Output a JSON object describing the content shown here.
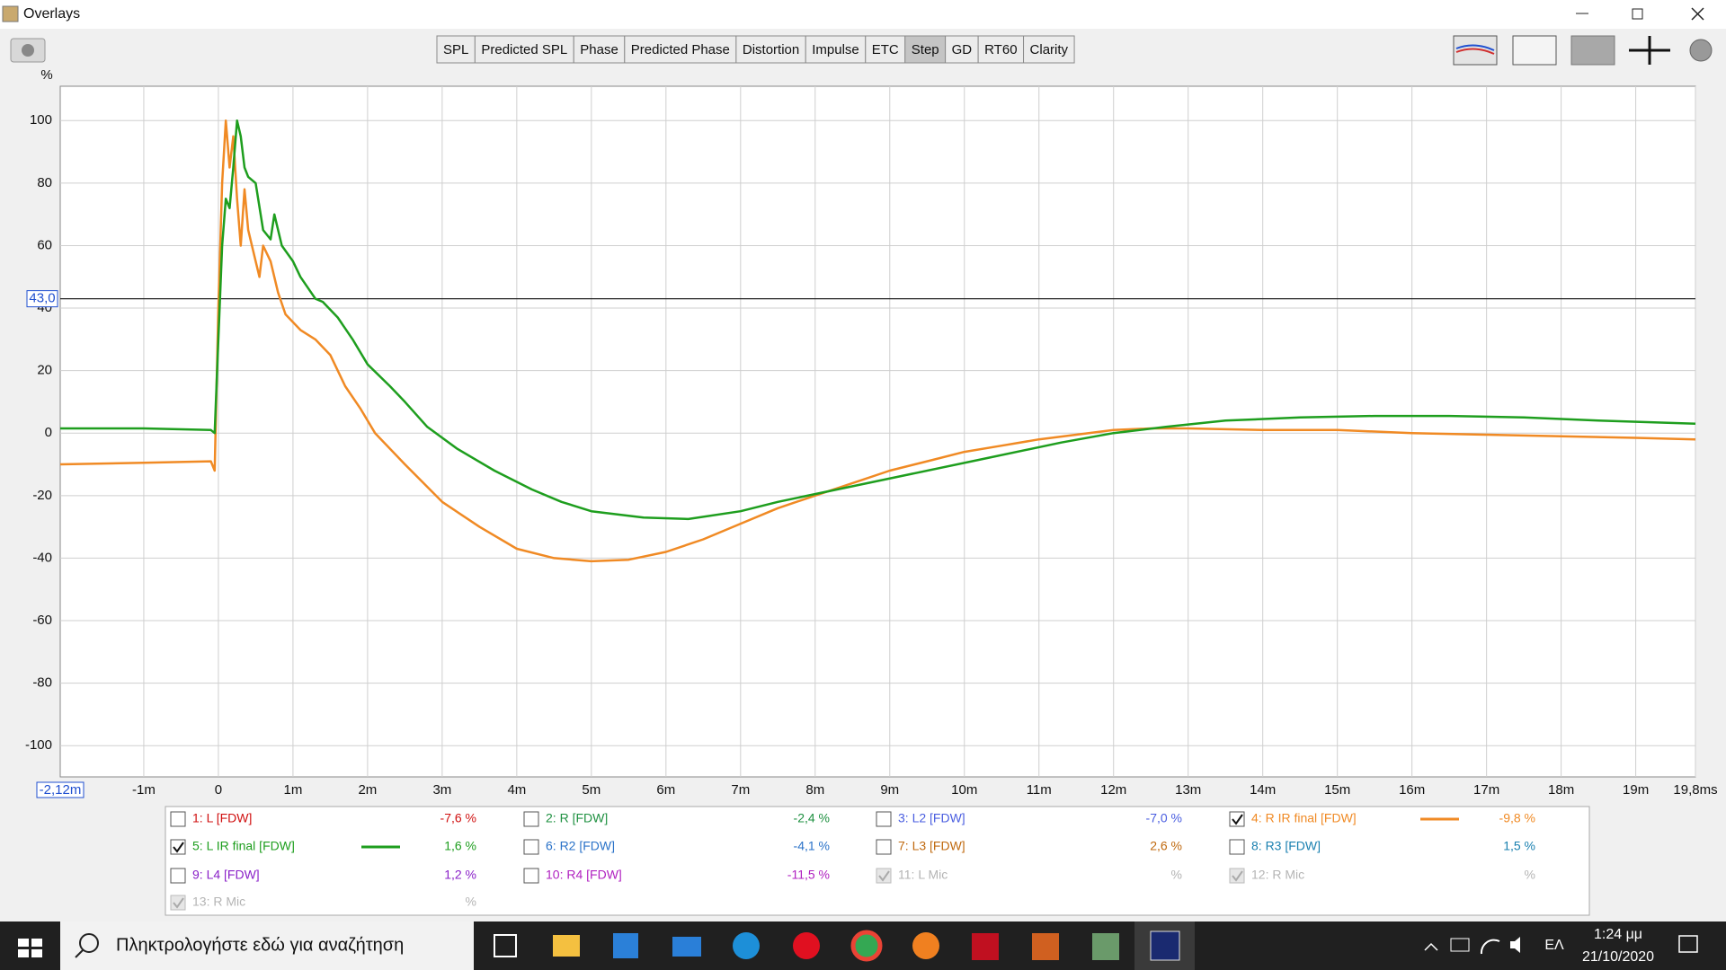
{
  "window": {
    "title": "Overlays"
  },
  "toolbar": {
    "tabs": [
      "SPL",
      "Predicted SPL",
      "Phase",
      "Predicted Phase",
      "Distortion",
      "Impulse",
      "ETC",
      "Step",
      "GD",
      "RT60",
      "Clarity"
    ],
    "selected": 7
  },
  "chart_data": {
    "type": "line",
    "y_label": "%",
    "xlim": [
      -2.12,
      19.8
    ],
    "x_start_label": {
      "value": -2.12,
      "label": "-2,12m"
    },
    "xticks": [
      {
        "value": -1,
        "label": "-1m"
      },
      0,
      {
        "value": 1,
        "label": "1m"
      },
      {
        "value": 2,
        "label": "2m"
      },
      {
        "value": 3,
        "label": "3m"
      },
      {
        "value": 4,
        "label": "4m"
      },
      {
        "value": 5,
        "label": "5m"
      },
      {
        "value": 6,
        "label": "6m"
      },
      {
        "value": 7,
        "label": "7m"
      },
      {
        "value": 8,
        "label": "8m"
      },
      {
        "value": 9,
        "label": "9m"
      },
      {
        "value": 10,
        "label": "10m"
      },
      {
        "value": 11,
        "label": "11m"
      },
      {
        "value": 12,
        "label": "12m"
      },
      {
        "value": 13,
        "label": "13m"
      },
      {
        "value": 14,
        "label": "14m"
      },
      {
        "value": 15,
        "label": "15m"
      },
      {
        "value": 16,
        "label": "16m"
      },
      {
        "value": 17,
        "label": "17m"
      },
      {
        "value": 18,
        "label": "18m"
      },
      {
        "value": 19,
        "label": "19m"
      },
      {
        "value": 19.8,
        "label": "19,8ms"
      }
    ],
    "ylim": [
      -110,
      111
    ],
    "yticks": [
      100,
      80,
      60,
      40,
      20,
      0,
      -20,
      -40,
      -60,
      -80,
      -100
    ],
    "cursor": {
      "value": 43,
      "label": "43,0"
    },
    "grid": true,
    "series": [
      {
        "name": "4: R IR final [FDW]",
        "color": "#f08a24",
        "x": [
          -2.12,
          -1,
          -0.1,
          -0.05,
          0,
          0.05,
          0.1,
          0.15,
          0.2,
          0.25,
          0.3,
          0.35,
          0.4,
          0.5,
          0.55,
          0.6,
          0.7,
          0.8,
          0.9,
          1.1,
          1.3,
          1.5,
          1.7,
          1.9,
          2.1,
          2.5,
          3.0,
          3.5,
          4.0,
          4.5,
          5.0,
          5.5,
          6.0,
          6.5,
          7.0,
          7.5,
          8.0,
          8.5,
          9.0,
          9.5,
          10,
          10.5,
          11,
          11.5,
          12,
          12.5,
          13,
          14,
          15,
          16,
          17,
          18,
          19,
          19.8
        ],
        "values": [
          -10,
          -9.5,
          -9,
          -12,
          40,
          80,
          100,
          85,
          95,
          75,
          60,
          78,
          65,
          55,
          50,
          60,
          55,
          45,
          38,
          33,
          30,
          25,
          15,
          8,
          0,
          -10,
          -22,
          -30,
          -37,
          -40,
          -41,
          -40.5,
          -38,
          -34,
          -29,
          -24,
          -20,
          -16,
          -12,
          -9,
          -6,
          -4,
          -2,
          -0.5,
          1,
          1.5,
          1.5,
          1,
          1,
          0,
          -0.5,
          -1,
          -1.5,
          -2
        ]
      },
      {
        "name": "5: L IR final [FDW]",
        "color": "#1e9e1e",
        "x": [
          -2.12,
          -1,
          -0.1,
          -0.05,
          0,
          0.05,
          0.1,
          0.15,
          0.2,
          0.25,
          0.3,
          0.35,
          0.4,
          0.5,
          0.6,
          0.7,
          0.75,
          0.85,
          1.0,
          1.1,
          1.3,
          1.4,
          1.6,
          1.8,
          2.0,
          2.3,
          2.5,
          2.8,
          3.2,
          3.7,
          4.2,
          4.6,
          5,
          5.7,
          6.3,
          7,
          7.5,
          8.3,
          9.3,
          10.3,
          11.3,
          12,
          12.7,
          13.5,
          14.5,
          15.5,
          16.5,
          17.5,
          18.5,
          19.8
        ],
        "values": [
          1.5,
          1.5,
          1,
          0,
          30,
          60,
          75,
          72,
          85,
          100,
          95,
          85,
          82,
          80,
          65,
          62,
          70,
          60,
          55,
          50,
          43,
          42,
          37,
          30,
          22,
          15,
          10,
          2,
          -5,
          -12,
          -18,
          -22,
          -25,
          -27,
          -27.5,
          -25,
          -22,
          -18,
          -13,
          -8,
          -3,
          0,
          2,
          4,
          5,
          5.5,
          5.5,
          5,
          4,
          3
        ]
      }
    ]
  },
  "legend": {
    "items": [
      {
        "name": "1: L [FDW]",
        "value": "-7,6 %",
        "checked": false,
        "enabled": true,
        "color": "#d01010"
      },
      {
        "name": "2: R [FDW]",
        "value": "-2,4 %",
        "checked": false,
        "enabled": true,
        "color": "#1e9040"
      },
      {
        "name": "3: L2 [FDW]",
        "value": "-7,0 %",
        "checked": false,
        "enabled": true,
        "color": "#4a5ee0"
      },
      {
        "series": 0,
        "value": "-9,8 %",
        "checked": true,
        "enabled": true
      },
      {
        "series": 1,
        "value": "1,6 %",
        "checked": true,
        "enabled": true
      },
      {
        "name": "6: R2 [FDW]",
        "value": "-4,1 %",
        "checked": false,
        "enabled": true,
        "color": "#2a72c8"
      },
      {
        "name": "7: L3 [FDW]",
        "value": "2,6 %",
        "checked": false,
        "enabled": true,
        "color": "#c06a10"
      },
      {
        "name": "8: R3 [FDW]",
        "value": "1,5 %",
        "checked": false,
        "enabled": true,
        "color": "#1a80b0"
      },
      {
        "name": "9: L4 [FDW]",
        "value": "1,2 %",
        "checked": false,
        "enabled": true,
        "color": "#8a20c8"
      },
      {
        "name": "10: R4 [FDW]",
        "value": "-11,5 %",
        "checked": false,
        "enabled": true,
        "color": "#b020c0"
      },
      {
        "name": "11: L Mic",
        "value": "%",
        "checked": true,
        "enabled": false,
        "color": "#b4b4b4"
      },
      {
        "name": "12: R Mic",
        "value": "%",
        "checked": true,
        "enabled": false,
        "color": "#b4b4b4"
      },
      {
        "name": "13: R Mic",
        "value": "%",
        "checked": true,
        "enabled": false,
        "color": "#b4b4b4"
      }
    ]
  },
  "taskbar": {
    "search": "Πληκτρολογήστε εδώ για αναζήτηση",
    "language": "ΕΛ",
    "time": "1:24 μμ",
    "date": "21/10/2020"
  }
}
